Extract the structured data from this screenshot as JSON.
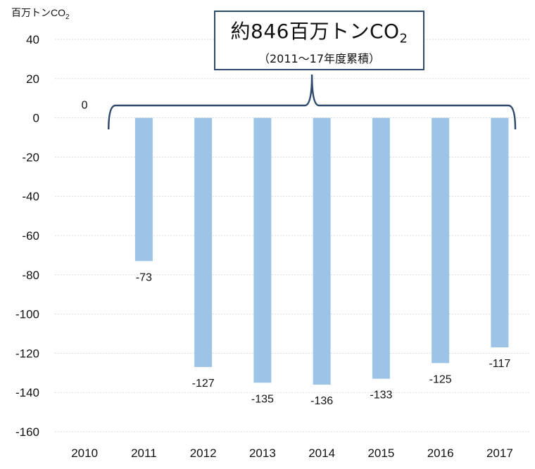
{
  "chart_data": {
    "type": "bar",
    "unit": "百万トンCO",
    "unit_subscript": "2",
    "categories": [
      "2010",
      "2011",
      "2012",
      "2013",
      "2014",
      "2015",
      "2016",
      "2017"
    ],
    "values": [
      0,
      -73,
      -127,
      -135,
      -136,
      -133,
      -125,
      -117
    ],
    "data_labels": [
      "0",
      "-73",
      "-127",
      "-135",
      "-136",
      "-133",
      "-125",
      "-117"
    ],
    "ylim": [
      -160,
      40
    ],
    "yticks": [
      "40",
      "20",
      "0",
      "-20",
      "-40",
      "-60",
      "-80",
      "-100",
      "-120",
      "-140",
      "-160"
    ],
    "grid": true,
    "bar_color": "#9dc3e6",
    "annotation": {
      "main": "約846百万トンCO",
      "main_subscript": "2",
      "sub": "（2011～17年度累積）",
      "border_color": "#2f4a6d",
      "brace_color": "#2f4a6d"
    }
  }
}
